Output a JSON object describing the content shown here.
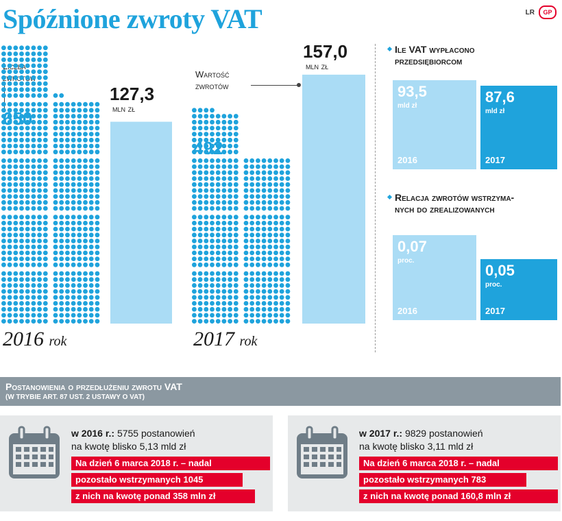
{
  "title": "Spóźnione zwroty VAT",
  "credit": "LR",
  "logo_text": "GP",
  "colors": {
    "blue": "#1fa3dc",
    "light_blue": "#aadcf5",
    "red": "#e4002b",
    "gray": "#8b98a1",
    "panel": "#e7e9ea"
  },
  "left_label": {
    "line1": "Liczba",
    "line2": "zwrotów"
  },
  "mid_label": {
    "line1": "Wartość",
    "line2": "zwrotów"
  },
  "years": [
    {
      "year": "2016",
      "suffix": "rok",
      "count": "650",
      "value": "127,3",
      "value_unit": "mln zł"
    },
    {
      "year": "2017",
      "suffix": "rok",
      "count": "492",
      "value": "157,0",
      "value_unit": "mln zł"
    }
  ],
  "chart_data": [
    {
      "type": "bar",
      "title": "",
      "series": [
        {
          "name": "Liczba zwrotów",
          "values": [
            650,
            492
          ]
        },
        {
          "name": "Wartość zwrotów",
          "values": [
            127.3,
            157.0
          ]
        }
      ],
      "categories": [
        "2016",
        "2017"
      ],
      "units": "mln zł"
    },
    {
      "type": "bar",
      "title": "Ile VAT wypłacono przedsiębiorcom",
      "categories": [
        "2016",
        "2017"
      ],
      "values": [
        93.5,
        87.6
      ],
      "units": "mld zł"
    },
    {
      "type": "bar",
      "title": "Relacja zwrotów wstrzymanych do zrealizowanych",
      "categories": [
        "2016",
        "2017"
      ],
      "values": [
        0.07,
        0.05
      ],
      "units": "proc."
    }
  ],
  "vat_paid": {
    "heading_line1": "Ile VAT wypłacono",
    "heading_line2": "przedsiębiorcom",
    "items": [
      {
        "value": "93,5",
        "unit": "mld zł",
        "year": "2016"
      },
      {
        "value": "87,6",
        "unit": "mld zł",
        "year": "2017"
      }
    ]
  },
  "ratio": {
    "heading_line1": "Relacja zwrotów wstrzyma-",
    "heading_line2": "nych do zrealizowanych",
    "items": [
      {
        "value": "0,07",
        "unit": "proc.",
        "year": "2016"
      },
      {
        "value": "0,05",
        "unit": "proc.",
        "year": "2017"
      }
    ]
  },
  "banner": {
    "title": "Postanowienia o przedłużeniu zwrotu VAT",
    "subtitle": "(W TRYBIE ART. 87 UST. 2 USTAWY O VAT)"
  },
  "panels": [
    {
      "label": "w 2016 r.:",
      "text1": "5755 postanowień",
      "text2": "na kwotę blisko 5,13 mld zł",
      "red": [
        "Na dzień 6 marca 2018 r. – nadal",
        "pozostało wstrzymanych 1045",
        "z nich na kwotę ponad 358 mln zł"
      ]
    },
    {
      "label": "w 2017 r.:",
      "text1": "9829 postanowień",
      "text2": "na kwotę blisko 3,11 mld zł",
      "red": [
        "Na dzień 6 marca 2018 r. – nadal",
        "pozostało wstrzymanych 783",
        "z nich na kwotę ponad 160,8 mln zł"
      ]
    }
  ]
}
